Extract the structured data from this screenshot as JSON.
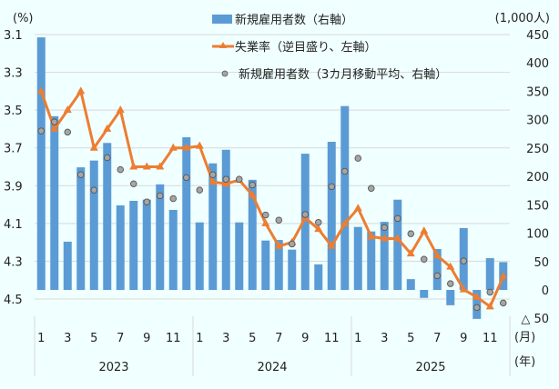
{
  "chart_data": {
    "type": "bar+line",
    "title": "",
    "left_axis": {
      "unit_label": "(%)",
      "ticks": [
        "3.1",
        "3.3",
        "3.5",
        "3.7",
        "3.9",
        "4.1",
        "4.3",
        "4.5"
      ],
      "range": [
        3.1,
        4.5
      ],
      "inverted": true
    },
    "right_axis": {
      "unit_label": "(1,000人)",
      "ticks": [
        "450",
        "400",
        "350",
        "300",
        "250",
        "200",
        "150",
        "100",
        "50",
        "0",
        "△ 50"
      ],
      "range": [
        -50,
        450
      ]
    },
    "x_axis": {
      "month_unit_label": "(月)",
      "year_unit_label": "(年)",
      "years": [
        "2023",
        "2024",
        "2025"
      ],
      "month_tick_labels": [
        "1",
        "3",
        "5",
        "7",
        "9",
        "11"
      ]
    },
    "legend": [
      {
        "label": "新規雇用者数（右軸）",
        "type": "bar",
        "color": "#5B9BD5"
      },
      {
        "label": "失業率（逆目盛り、左軸）",
        "type": "line-triangle",
        "color": "#ED7D31"
      },
      {
        "label": "新規雇用者数（3カ月移動平均、右軸）",
        "type": "dot",
        "color": "#A5A5A5"
      }
    ],
    "categories": [
      "2023-01",
      "2023-02",
      "2023-03",
      "2023-04",
      "2023-05",
      "2023-06",
      "2023-07",
      "2023-08",
      "2023-09",
      "2023-10",
      "2023-11",
      "2023-12",
      "2024-01",
      "2024-02",
      "2024-03",
      "2024-04",
      "2024-05",
      "2024-06",
      "2024-07",
      "2024-08",
      "2024-09",
      "2024-10",
      "2024-11",
      "2024-12",
      "2025-01",
      "2025-02",
      "2025-03",
      "2025-04",
      "2025-05",
      "2025-06",
      "2025-07",
      "2025-08",
      "2025-09",
      "2025-10",
      "2025-11",
      "2025-12"
    ],
    "series": [
      {
        "name": "新規雇用者数（右軸）",
        "type": "bar",
        "axis": "right",
        "values": [
          445,
          306,
          85,
          216,
          228,
          259,
          149,
          157,
          159,
          186,
          141,
          269,
          119,
          223,
          247,
          119,
          194,
          87,
          88,
          71,
          240,
          45,
          261,
          324,
          111,
          103,
          120,
          159,
          19,
          -14,
          72,
          -27,
          109,
          -51,
          56,
          49
        ]
      },
      {
        "name": "失業率（逆目盛り、左軸）",
        "type": "line",
        "axis": "left",
        "values": [
          3.4,
          3.6,
          3.5,
          3.4,
          3.7,
          3.6,
          3.5,
          3.8,
          3.8,
          3.8,
          3.7,
          3.7,
          3.69,
          3.88,
          3.89,
          3.87,
          3.95,
          4.1,
          4.22,
          4.2,
          4.07,
          4.13,
          4.22,
          4.1,
          4.02,
          4.17,
          4.18,
          4.18,
          4.26,
          4.14,
          4.27,
          4.33,
          4.45,
          4.49,
          4.54,
          4.38
        ]
      },
      {
        "name": "新規雇用者数（3カ月移動平均、右軸）",
        "type": "scatter",
        "axis": "right",
        "values": [
          280,
          296,
          278,
          203,
          176,
          233,
          212,
          187,
          155,
          166,
          161,
          198,
          176,
          203,
          195,
          195,
          185,
          132,
          123,
          81,
          133,
          119,
          182,
          209,
          232,
          179,
          110,
          126,
          99,
          54,
          25,
          11,
          51,
          -31,
          -4,
          -23
        ]
      }
    ],
    "colors": {
      "background": "#F0FFFF",
      "bar": "#5B9BD5",
      "line": "#ED7D31",
      "dot": "#A5A5A5",
      "dot_stroke": "#555555",
      "grid": "#D9D9D9"
    }
  }
}
